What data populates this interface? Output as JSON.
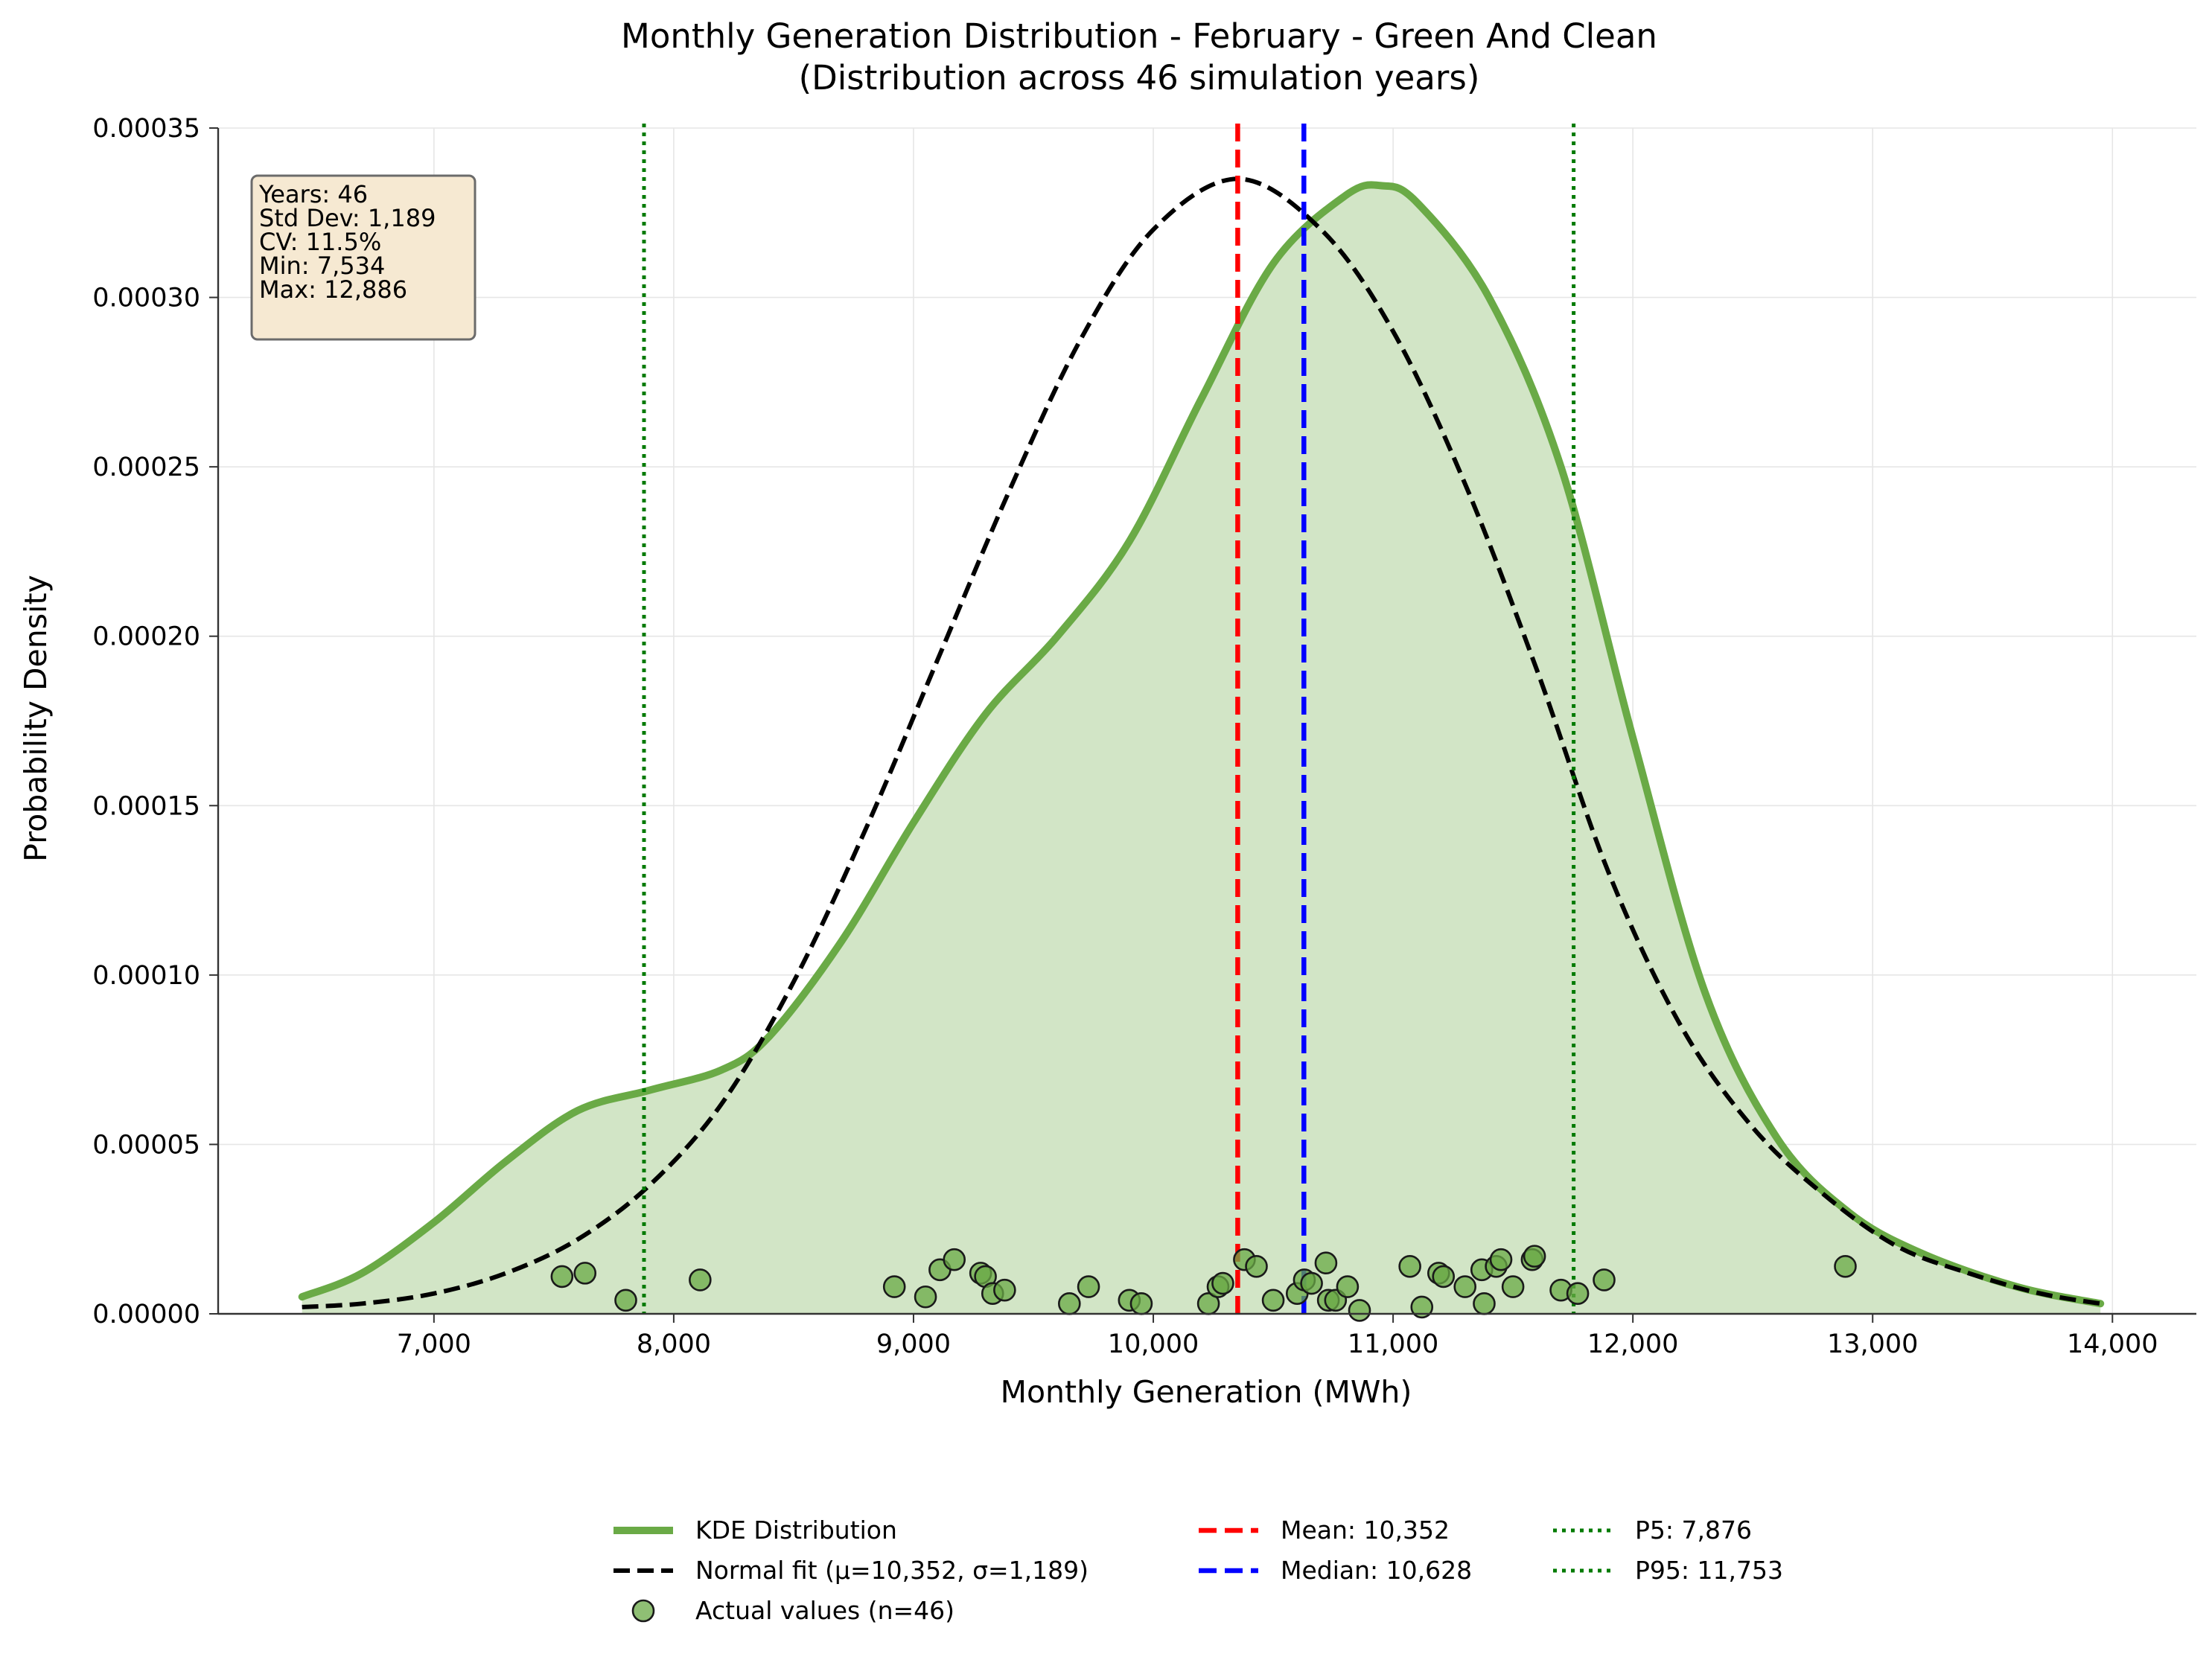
{
  "chart_data": {
    "type": "area",
    "title": "Monthly Generation Distribution - February - Green And Clean",
    "subtitle": "(Distribution across 46 simulation years)",
    "xlabel": "Monthly Generation (MWh)",
    "ylabel": "Probability Density",
    "xlim": [
      6100,
      14350
    ],
    "ylim": [
      0,
      0.00035
    ],
    "x_ticks": [
      7000,
      8000,
      9000,
      10000,
      11000,
      12000,
      13000,
      14000
    ],
    "x_tick_labels": [
      "7,000",
      "8,000",
      "9,000",
      "10,000",
      "11,000",
      "12,000",
      "13,000",
      "14,000"
    ],
    "y_ticks": [
      0,
      5e-05,
      0.0001,
      0.00015,
      0.0002,
      0.00025,
      0.0003,
      0.00035
    ],
    "y_tick_labels": [
      "0.00000",
      "0.00005",
      "0.00010",
      "0.00015",
      "0.00020",
      "0.00025",
      "0.00030",
      "0.00035"
    ],
    "grid": true,
    "legend_position": "bottom-center",
    "stats_box": {
      "position": "top-left",
      "lines": [
        "Years: 46",
        "Std Dev: 1,189",
        "CV: 11.5%",
        "Min: 7,534",
        "Max: 12,886"
      ]
    },
    "series": [
      {
        "name": "KDE Distribution",
        "type": "area",
        "color": "#6aaa46",
        "fill": "#d2e5c6",
        "x": [
          6450,
          6700,
          7000,
          7300,
          7600,
          7900,
          8200,
          8400,
          8700,
          9000,
          9300,
          9600,
          9900,
          10200,
          10500,
          10800,
          10950,
          11100,
          11400,
          11700,
          12000,
          12300,
          12600,
          12900,
          13200,
          13600,
          13950
        ],
        "y": [
          5e-06,
          1.2e-05,
          2.7e-05,
          4.5e-05,
          6e-05,
          6.6e-05,
          7.2e-05,
          8.2e-05,
          0.00011,
          0.000145,
          0.000177,
          0.0002,
          0.000228,
          0.00027,
          0.00031,
          0.00033,
          0.000333,
          0.000328,
          0.0003,
          0.00025,
          0.00017,
          9.5e-05,
          5.2e-05,
          3e-05,
          1.8e-05,
          8e-06,
          3e-06
        ]
      },
      {
        "name": "Normal fit (μ=10,352, σ=1,189)",
        "type": "line",
        "color": "#000000",
        "dash": "dashed",
        "x": [
          6450,
          6700,
          7000,
          7300,
          7600,
          7900,
          8200,
          8500,
          8800,
          9100,
          9400,
          9700,
          10000,
          10352,
          10700,
          11000,
          11300,
          11600,
          11900,
          12200,
          12500,
          12800,
          13100,
          13400,
          13700,
          13950
        ],
        "y": [
          2e-06,
          3e-06,
          6e-06,
          1.2e-05,
          2.2e-05,
          3.8e-05,
          6.2e-05,
          9.8e-05,
          0.000143,
          0.000193,
          0.000243,
          0.000288,
          0.00032,
          0.000335,
          0.00032,
          0.00029,
          0.000245,
          0.00019,
          0.00013,
          8.5e-05,
          5.5e-05,
          3.5e-05,
          2e-05,
          1.2e-05,
          6e-06,
          3e-06
        ]
      },
      {
        "name": "Actual values (n=46)",
        "type": "scatter",
        "color": "#6aaa46",
        "points": [
          [
            7534,
            1.1e-05
          ],
          [
            7630,
            1.2e-05
          ],
          [
            7800,
            4e-06
          ],
          [
            8110,
            1e-05
          ],
          [
            8920,
            8e-06
          ],
          [
            9050,
            5e-06
          ],
          [
            9110,
            1.3e-05
          ],
          [
            9170,
            1.6e-05
          ],
          [
            9280,
            1.2e-05
          ],
          [
            9300,
            1.1e-05
          ],
          [
            9330,
            6e-06
          ],
          [
            9380,
            7e-06
          ],
          [
            9650,
            3e-06
          ],
          [
            9730,
            8e-06
          ],
          [
            9900,
            4e-06
          ],
          [
            9950,
            3e-06
          ],
          [
            10230,
            3e-06
          ],
          [
            10270,
            8e-06
          ],
          [
            10290,
            9e-06
          ],
          [
            10380,
            1.6e-05
          ],
          [
            10430,
            1.4e-05
          ],
          [
            10500,
            4e-06
          ],
          [
            10600,
            6e-06
          ],
          [
            10630,
            1e-05
          ],
          [
            10660,
            9e-06
          ],
          [
            10720,
            1.5e-05
          ],
          [
            10730,
            4e-06
          ],
          [
            10760,
            4e-06
          ],
          [
            10810,
            8e-06
          ],
          [
            10860,
            1e-06
          ],
          [
            11070,
            1.4e-05
          ],
          [
            11120,
            2e-06
          ],
          [
            11190,
            1.2e-05
          ],
          [
            11210,
            1.1e-05
          ],
          [
            11300,
            8e-06
          ],
          [
            11370,
            1.3e-05
          ],
          [
            11380,
            3e-06
          ],
          [
            11430,
            1.4e-05
          ],
          [
            11450,
            1.6e-05
          ],
          [
            11500,
            8e-06
          ],
          [
            11580,
            1.6e-05
          ],
          [
            11590,
            1.7e-05
          ],
          [
            11700,
            7e-06
          ],
          [
            11770,
            6e-06
          ],
          [
            11880,
            1e-05
          ],
          [
            12886,
            1.4e-05
          ]
        ]
      }
    ],
    "reference_lines": [
      {
        "name": "Mean: 10,352",
        "x": 10352,
        "color": "#ff0000",
        "dash": "dashed"
      },
      {
        "name": "Median: 10,628",
        "x": 10628,
        "color": "#0000ff",
        "dash": "dashed"
      },
      {
        "name": "P5: 7,876",
        "x": 7876,
        "color": "#007a00",
        "dash": "dotted"
      },
      {
        "name": "P95: 11,753",
        "x": 11753,
        "color": "#007a00",
        "dash": "dotted"
      }
    ]
  }
}
